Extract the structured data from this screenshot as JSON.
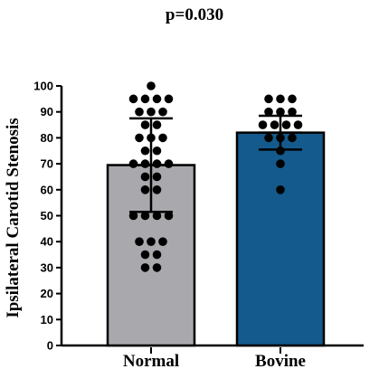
{
  "chart_data": {
    "type": "bar",
    "title": "p=0.030",
    "ylabel": "Ipsilateral Carotid Stenosis",
    "xlabel": "",
    "ylim": [
      0,
      100
    ],
    "yticks": [
      0,
      10,
      20,
      30,
      40,
      50,
      60,
      70,
      80,
      90,
      100
    ],
    "categories": [
      "Normal",
      "Bovine"
    ],
    "values": [
      69.5,
      82
    ],
    "error_sd": [
      18,
      6.5
    ],
    "bar_colors": [
      "#a9a9ad",
      "#145a8c"
    ],
    "points": [
      [
        100,
        95,
        95,
        95,
        95,
        90,
        90,
        90,
        85,
        85,
        80,
        80,
        80,
        75,
        75,
        70,
        70,
        70,
        70,
        65,
        65,
        60,
        60,
        50,
        50,
        50,
        50,
        40,
        40,
        40,
        35,
        35,
        30,
        30
      ],
      [
        95,
        95,
        95,
        90,
        90,
        90,
        85,
        85,
        85,
        85,
        80,
        80,
        80,
        75,
        70,
        60
      ]
    ],
    "grid": false,
    "legend": "none"
  }
}
